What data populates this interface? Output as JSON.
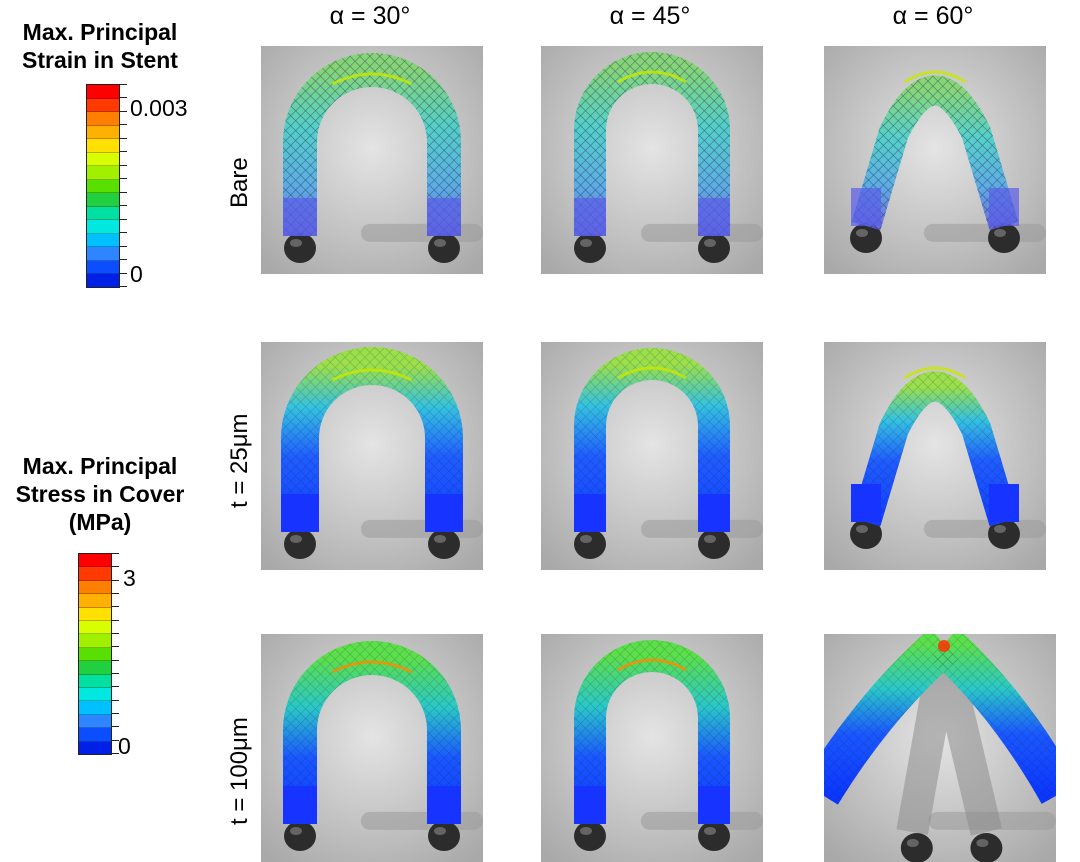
{
  "legend_strain": {
    "title_line1": "Max. Principal",
    "title_line2": "Strain in Stent",
    "max_label": "0.003",
    "min_label": "0"
  },
  "legend_stress": {
    "title_line1": "Max. Principal",
    "title_line2": "Stress in Cover",
    "title_line3": "(MPa)",
    "max_label": "3",
    "min_label": "0"
  },
  "colormap": [
    "#ff0000",
    "#ff3a00",
    "#ff8000",
    "#ffb000",
    "#ffe000",
    "#d8ff00",
    "#a0f000",
    "#5ae000",
    "#20d040",
    "#00e0a0",
    "#00e8e0",
    "#00c0ff",
    "#2f84ff",
    "#0a4eff",
    "#0020e8"
  ],
  "columns": [
    "α = 30°",
    "α = 45°",
    "α = 60°"
  ],
  "rows": [
    "Bare",
    "t = 25μm",
    "t = 100μm"
  ]
}
